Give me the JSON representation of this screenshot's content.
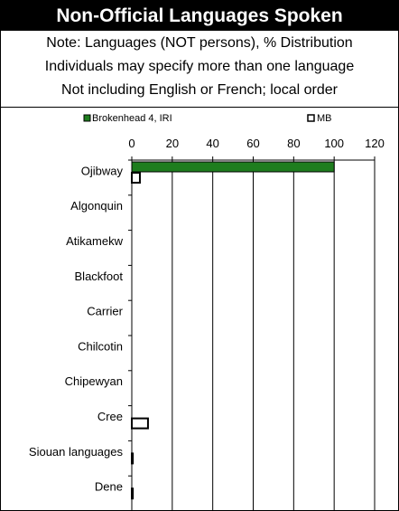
{
  "header": {
    "title": "Non-Official Languages Spoken",
    "notes": [
      "Note: Languages (NOT persons), % Distribution",
      "Individuals may specify more than one language",
      "Not including English or French; local order"
    ]
  },
  "chart_data": {
    "type": "bar",
    "orientation": "horizontal",
    "title": "",
    "xlabel": "",
    "ylabel": "",
    "xlim": [
      0,
      120
    ],
    "x_ticks": [
      "0",
      "20",
      "40",
      "60",
      "80",
      "100",
      "120"
    ],
    "grid": true,
    "legend_placement": "top",
    "categories": [
      "Ojibway",
      "Algonquin",
      "Atikamekw",
      "Blackfoot",
      "Carrier",
      "Chilcotin",
      "Chipewyan",
      "Cree",
      "Siouan languages",
      "Dene"
    ],
    "series": [
      {
        "name": "Brokenhead 4, IRI",
        "color": "#1e7d1e",
        "values": [
          100,
          0,
          0,
          0,
          0,
          0,
          0,
          0,
          0,
          0
        ]
      },
      {
        "name": "MB",
        "color": "#ffffff",
        "values": [
          4,
          0,
          0,
          0,
          0,
          0,
          0,
          8,
          0.5,
          0.5
        ]
      }
    ]
  }
}
